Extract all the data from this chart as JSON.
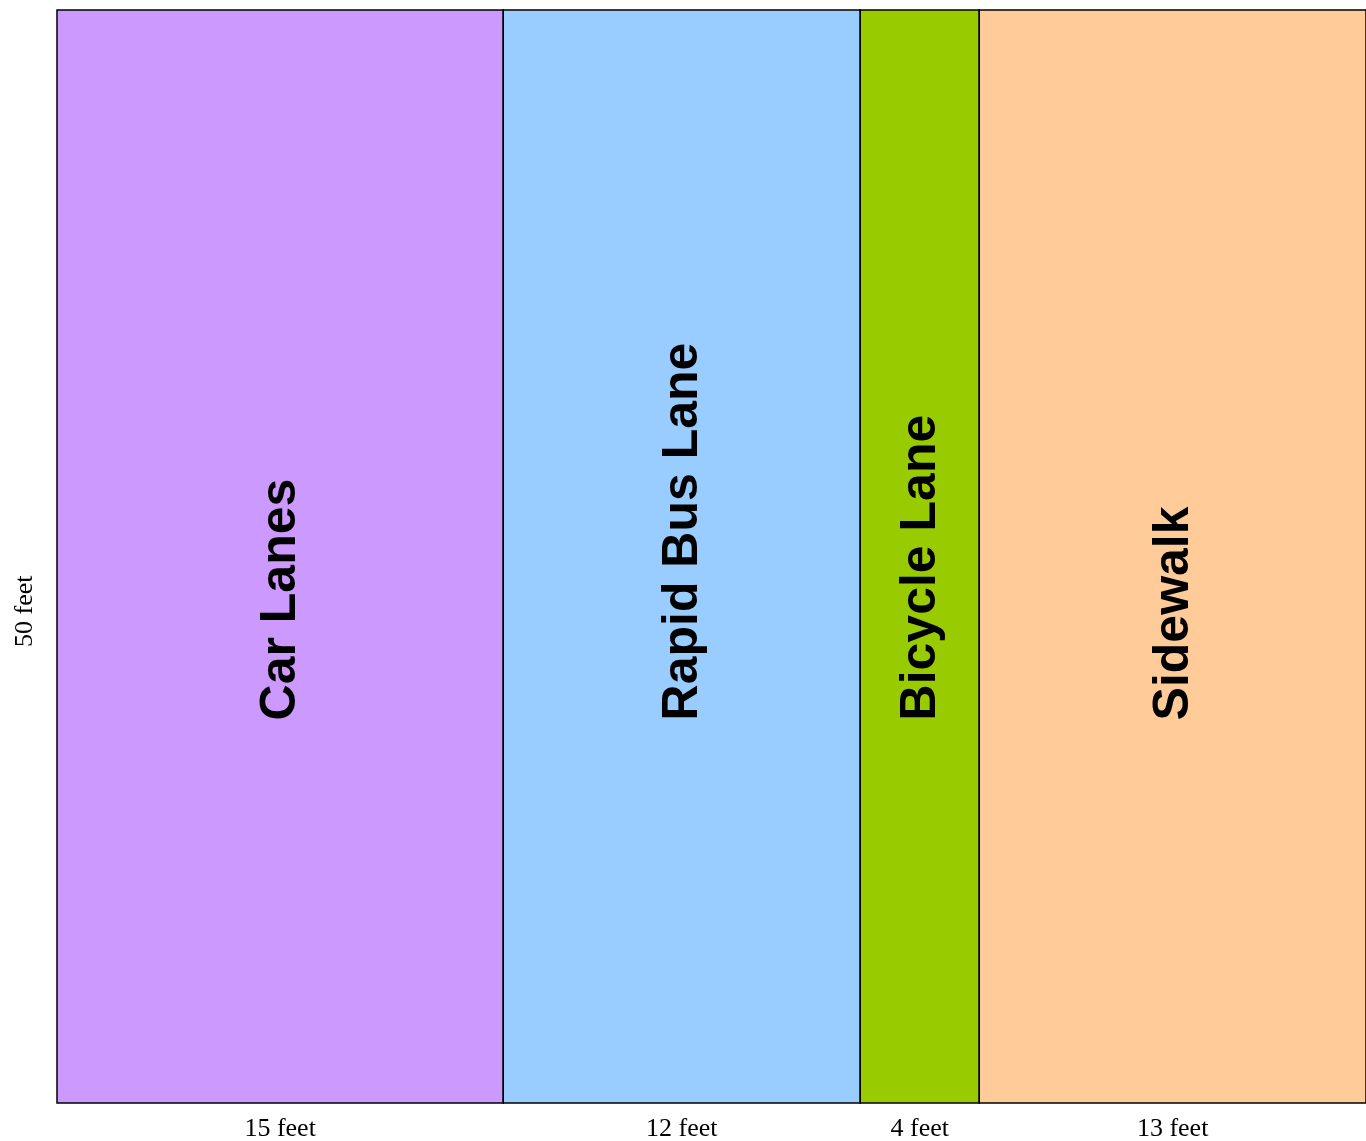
{
  "chart_data": {
    "type": "other",
    "categories": [
      "Car Lanes",
      "Rapid Bus Lane",
      "Bicycle Lane",
      "Sidewalk"
    ],
    "values": [
      15,
      12,
      4,
      13
    ],
    "value_labels": [
      "15 feet",
      "12 feet",
      "4 feet",
      "13 feet"
    ],
    "colors": [
      "#cc99ff",
      "#99ccff",
      "#99cc00",
      "#ffcc99"
    ],
    "ylabel": "50 feet"
  }
}
